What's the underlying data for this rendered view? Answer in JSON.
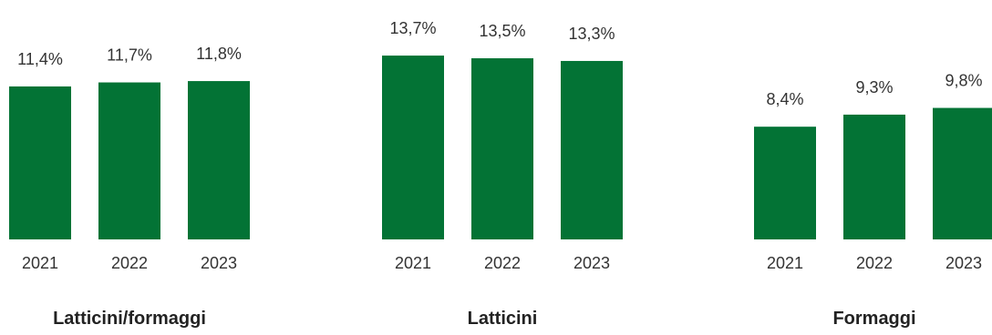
{
  "colors": {
    "bar": "#037335",
    "text": "#333333",
    "title": "#222222",
    "background": "#ffffff"
  },
  "chart_data": [
    {
      "type": "bar",
      "title": "Latticini/formaggi",
      "categories": [
        "2021",
        "2022",
        "2023"
      ],
      "values": [
        11.4,
        11.7,
        11.8
      ],
      "value_labels": [
        "11,4%",
        "11,7%",
        "11,8%"
      ],
      "ylim": [
        0,
        14.5
      ],
      "grid": false
    },
    {
      "type": "bar",
      "title": "Latticini",
      "categories": [
        "2021",
        "2022",
        "2023"
      ],
      "values": [
        13.7,
        13.5,
        13.3
      ],
      "value_labels": [
        "13,7%",
        "13,5%",
        "13,3%"
      ],
      "ylim": [
        0,
        14.5
      ],
      "grid": false
    },
    {
      "type": "bar",
      "title": "Formaggi",
      "categories": [
        "2021",
        "2022",
        "2023"
      ],
      "values": [
        8.4,
        9.3,
        9.8
      ],
      "value_labels": [
        "8,4%",
        "9,3%",
        "9,8%"
      ],
      "ylim": [
        0,
        14.5
      ],
      "grid": false
    }
  ]
}
